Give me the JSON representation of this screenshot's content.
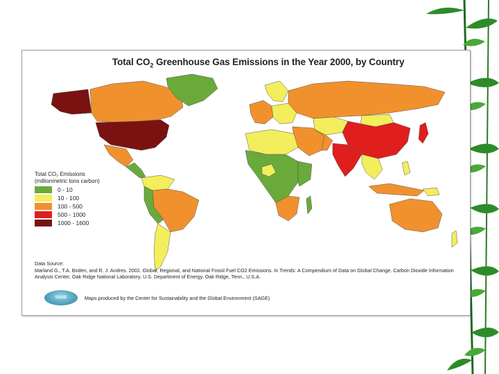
{
  "slide": {
    "decoration": "bamboo-leaves"
  },
  "map": {
    "title_part1": "Total CO",
    "title_sub": "2",
    "title_part2": " Greenhouse Gas Emissions in the Year 2000, by Country",
    "legend": {
      "title_line1": "Total CO₂ Emissions",
      "title_line2": "(millionmetric tons carbon)",
      "items": [
        {
          "label": "0 - 10",
          "color": "#6aaa3a"
        },
        {
          "label": "10 - 100",
          "color": "#f2ee5c"
        },
        {
          "label": "100 - 500",
          "color": "#f0912e"
        },
        {
          "label": "500 - 1000",
          "color": "#e01e1e"
        },
        {
          "label": "1000 - 1600",
          "color": "#7a1212"
        }
      ]
    },
    "source_heading": "Data Source:",
    "source_text": "Marland G., T.A. Boden, and R. J. Andres. 2002. Global, Regional, and National Fossil Fuel CO2 Emissions. In Trends: A Compendium of Data on Global Change. Carbon Dioxide Information Analysis Center, Oak Ridge National Laboratory, U.S. Department of Energy, Oak Ridge, Tenn., U.S.A.",
    "credit_text": "Maps produced by the Center for Sustainability and the Global Environment (SAGE)",
    "logo_text": "SAGE"
  }
}
